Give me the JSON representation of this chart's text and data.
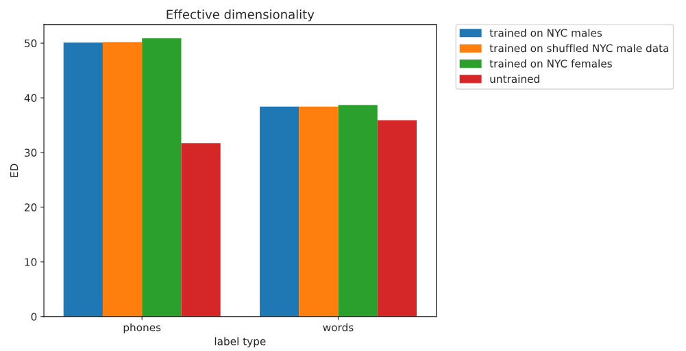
{
  "chart_data": {
    "type": "bar",
    "title": "Effective dimensionality",
    "xlabel": "label type",
    "ylabel": "ED",
    "categories": [
      "phones",
      "words"
    ],
    "series": [
      {
        "name": "trained on NYC males",
        "color": "#1f77b4",
        "values": [
          50.1,
          38.4
        ]
      },
      {
        "name": "trained on shuffled NYC male data",
        "color": "#ff7f0e",
        "values": [
          50.2,
          38.4
        ]
      },
      {
        "name": "trained on NYC females",
        "color": "#2ca02c",
        "values": [
          50.9,
          38.7
        ]
      },
      {
        "name": "untrained",
        "color": "#d62728",
        "values": [
          31.7,
          35.9
        ]
      }
    ],
    "ylim": [
      0,
      53.4
    ],
    "yticks": [
      0,
      10,
      20,
      30,
      40,
      50
    ],
    "grid": false,
    "legend": "top right"
  }
}
